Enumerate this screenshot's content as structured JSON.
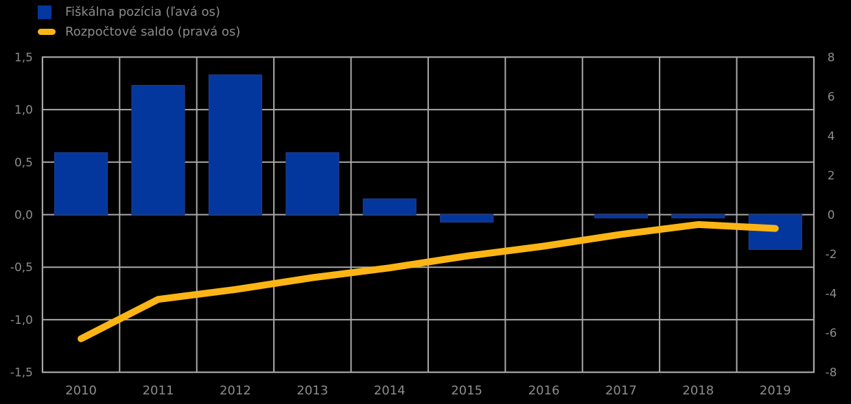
{
  "legend": [
    {
      "label": "Fiškálna pozícia (ľavá os)",
      "swatch": "bar-square",
      "color": "#03379E"
    },
    {
      "label": "Rozpočtové saldo (pravá os)",
      "swatch": "line-segment",
      "color": "#FDB515"
    }
  ],
  "chart_data": {
    "type": "combo",
    "categories": [
      "2010",
      "2011",
      "2012",
      "2013",
      "2014",
      "2015",
      "2016",
      "2017",
      "2018",
      "2019"
    ],
    "series": [
      {
        "name": "Fiškálna pozícia (ľavá os)",
        "type": "bar",
        "axis": "left",
        "color": "#03379E",
        "values": [
          0.59,
          1.23,
          1.33,
          0.59,
          0.15,
          -0.07,
          0.0,
          -0.03,
          -0.03,
          -0.33
        ]
      },
      {
        "name": "Rozpočtové saldo (pravá os)",
        "type": "line",
        "axis": "right",
        "color": "#FDB515",
        "values": [
          -6.3,
          -4.3,
          -3.8,
          -3.2,
          -2.7,
          -2.1,
          -1.6,
          -1.0,
          -0.5,
          -0.7
        ]
      }
    ],
    "left_axis": {
      "min": -1.5,
      "max": 1.5,
      "tick_values": [
        1.5,
        1.0,
        0.5,
        0.0,
        -0.5,
        -1.0,
        -1.5
      ],
      "tick_labels": [
        "1,5",
        "1,0",
        "0,5",
        "0,0",
        "-0,5",
        "-1,0",
        "-1,5"
      ]
    },
    "right_axis": {
      "min": -8,
      "max": 8,
      "tick_values": [
        8,
        6,
        4,
        2,
        0,
        -2,
        -4,
        -6,
        -8
      ],
      "tick_labels": [
        "8",
        "6",
        "4",
        "2",
        "0",
        "-2",
        "-4",
        "-6",
        "-8"
      ]
    },
    "grid": true,
    "legend_position": "top-left",
    "colors": {
      "background": "#000000",
      "gridline": "#ABABAB",
      "text": "#8C8C8C",
      "bar_fill": "#03379E",
      "bar_edge": "#1B3A8A",
      "line": "#FDB515"
    }
  }
}
